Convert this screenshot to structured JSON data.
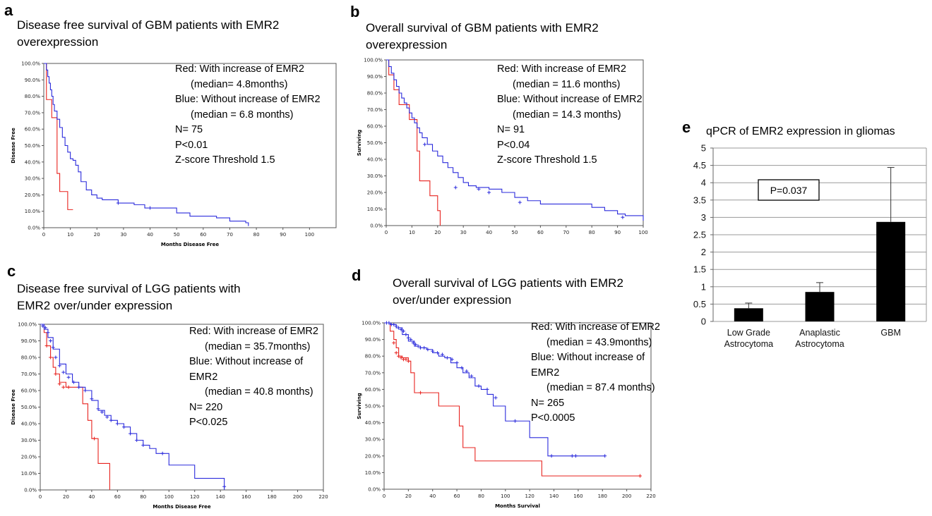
{
  "panels": {
    "a": {
      "letter": "a",
      "title": "Disease free survival of GBM patients with EMR2\noverexpression",
      "legend": {
        "red": "Red: With increase of EMR2",
        "red_median": "(median= 4.8months)",
        "blue": "Blue: Without increase of EMR2",
        "blue_median": "(median = 6.8 months)",
        "n": "N= 75",
        "p": "P<0.01",
        "z": "Z-score Threshold 1.5"
      }
    },
    "b": {
      "letter": "b",
      "title": "Overall survival of GBM patients with EMR2\noverexpression",
      "legend": {
        "red": "Red: With increase of EMR2",
        "red_median": "(median = 11.6 months)",
        "blue": "Blue: Without increase of EMR2",
        "blue_median": "(median = 14.3 months)",
        "n": "N= 91",
        "p": "P<0.04",
        "z": "Z-score Threshold 1.5"
      }
    },
    "c": {
      "letter": "c",
      "title": "Disease free survival of LGG patients with\nEMR2 over/under expression",
      "legend": {
        "red": "Red: With increase of EMR2",
        "red_median": "(median = 35.7months)",
        "blue": "Blue: Without increase of",
        "blue2": "EMR2",
        "blue_median": "(median = 40.8 months)",
        "n": "N= 220",
        "p": "P<0.025"
      }
    },
    "d": {
      "letter": "d",
      "title": "Overall survival of LGG patients with EMR2\nover/under expression",
      "legend": {
        "red": "Red: With increase of EMR2",
        "red_median": "(median = 43.9months)",
        "blue": "Blue: Without increase of",
        "blue2": "EMR2",
        "blue_median": "(median = 87.4 months)",
        "n": "N= 265",
        "p": "P<0.0005"
      }
    },
    "e": {
      "letter": "e",
      "title": "qPCR of EMR2 expression in gliomas",
      "annotation": "P=0.037"
    }
  },
  "colors": {
    "red": "#e8231f",
    "blue": "#2b2bdc",
    "axis": "#555555",
    "bar": "#000000"
  },
  "chart_data": [
    {
      "id": "a",
      "type": "line",
      "xlabel": "Months Disease Free",
      "ylabel": "Disease Free",
      "xlim": [
        0,
        110
      ],
      "ylim": [
        0,
        100
      ],
      "xticks": [
        "0",
        "10",
        "20",
        "30",
        "40",
        "50",
        "60",
        "70",
        "80",
        "90",
        "100"
      ],
      "yticks": [
        "0.0%",
        "10.0%",
        "20.0%",
        "30.0%",
        "40.0%",
        "50.0%",
        "60.0%",
        "70.0%",
        "80.0%",
        "90.0%",
        "100.0%"
      ],
      "series": [
        {
          "color": "red",
          "x": [
            0,
            1,
            1,
            3,
            3,
            5,
            5,
            6,
            6,
            9,
            9,
            11
          ],
          "y": [
            100,
            100,
            78,
            78,
            67,
            67,
            33,
            33,
            22,
            22,
            11,
            11
          ],
          "censor_x": [],
          "censor_y": []
        },
        {
          "color": "blue",
          "x": [
            0,
            1,
            1.5,
            2,
            2.5,
            3,
            3.5,
            4,
            5,
            6,
            7,
            8,
            9,
            10,
            11,
            12,
            13,
            14,
            16,
            18,
            20,
            22,
            25,
            28,
            30,
            34,
            38,
            42,
            46,
            50,
            55,
            60,
            65,
            70,
            74,
            76,
            77
          ],
          "y": [
            100,
            96,
            92,
            88,
            84,
            80,
            75,
            71,
            66,
            61,
            55,
            50,
            46,
            42,
            41,
            38,
            34,
            28,
            23,
            20,
            18,
            17,
            17,
            15,
            15,
            14,
            12,
            12,
            12,
            9,
            7,
            7,
            6,
            4,
            4,
            3,
            1
          ],
          "censor_x": [
            28,
            40
          ],
          "censor_y": [
            15,
            12
          ]
        }
      ]
    },
    {
      "id": "b",
      "type": "line",
      "xlabel": "",
      "ylabel": "Surviving",
      "xlim": [
        0,
        100
      ],
      "ylim": [
        0,
        100
      ],
      "xticks": [
        "0",
        "10",
        "20",
        "30",
        "40",
        "50",
        "60",
        "70",
        "80",
        "90",
        "100"
      ],
      "yticks": [
        "0.0%",
        "10.0%",
        "20.0%",
        "30.0%",
        "40.0%",
        "50.0%",
        "60.0%",
        "70.0%",
        "80.0%",
        "90.0%",
        "100.0%"
      ],
      "series": [
        {
          "color": "red",
          "x": [
            0,
            1,
            1,
            3,
            3,
            5,
            5,
            9,
            9,
            12,
            12,
            13,
            13,
            17,
            17,
            20,
            20,
            21
          ],
          "y": [
            100,
            100,
            91,
            91,
            82,
            82,
            73,
            73,
            64,
            64,
            45,
            45,
            27,
            27,
            18,
            18,
            9,
            0
          ],
          "censor_x": [],
          "censor_y": []
        },
        {
          "color": "blue",
          "x": [
            0,
            1,
            2,
            3,
            4,
            5,
            6,
            7,
            8,
            9,
            10,
            11,
            12,
            13,
            14,
            16,
            18,
            20,
            22,
            24,
            26,
            28,
            30,
            32,
            35,
            40,
            45,
            50,
            55,
            60,
            65,
            70,
            75,
            80,
            85,
            90,
            93,
            98,
            100
          ],
          "y": [
            100,
            96,
            92,
            88,
            84,
            80,
            77,
            74,
            71,
            68,
            65,
            62,
            59,
            56,
            53,
            49,
            45,
            42,
            38,
            35,
            32,
            29,
            26,
            24,
            23,
            22,
            20,
            17,
            15,
            13,
            13,
            13,
            13,
            11,
            9,
            7,
            6,
            6,
            3
          ],
          "censor_x": [
            15,
            27,
            36,
            40,
            52,
            92
          ],
          "censor_y": [
            49,
            23,
            22,
            20,
            14,
            5
          ]
        }
      ]
    },
    {
      "id": "c",
      "type": "line",
      "xlabel": "Months Disease Free",
      "ylabel": "Disease Free",
      "xlim": [
        0,
        220
      ],
      "ylim": [
        0,
        100
      ],
      "xticks": [
        "0",
        "20",
        "40",
        "60",
        "80",
        "100",
        "120",
        "140",
        "160",
        "180",
        "200",
        "220"
      ],
      "yticks": [
        "0.0%",
        "10.0%",
        "20.0%",
        "30.0%",
        "40.0%",
        "50.0%",
        "60.0%",
        "70.0%",
        "80.0%",
        "90.0%",
        "100.0%"
      ],
      "series": [
        {
          "color": "red",
          "x": [
            0,
            3,
            5,
            8,
            10,
            12,
            15,
            20,
            25,
            30,
            33,
            35,
            37,
            40,
            43,
            45,
            48,
            54
          ],
          "y": [
            100,
            95,
            87,
            80,
            74,
            70,
            65,
            62,
            62,
            62,
            52,
            52,
            42,
            31,
            31,
            16,
            16,
            0
          ],
          "censor_x": [
            5,
            8,
            12,
            15,
            18,
            22,
            42
          ],
          "censor_y": [
            87,
            80,
            70,
            64,
            62,
            62,
            31
          ]
        },
        {
          "color": "blue",
          "x": [
            0,
            3,
            6,
            10,
            15,
            20,
            25,
            30,
            35,
            40,
            45,
            50,
            55,
            60,
            65,
            70,
            75,
            80,
            85,
            90,
            95,
            100,
            110,
            120,
            130,
            143
          ],
          "y": [
            100,
            97,
            92,
            85,
            76,
            70,
            65,
            62,
            60,
            54,
            48,
            45,
            42,
            40,
            38,
            34,
            30,
            27,
            25,
            22,
            22,
            15,
            15,
            7,
            7,
            0
          ],
          "censor_x": [
            2,
            4,
            6,
            8,
            10,
            12,
            15,
            18,
            22,
            26,
            30,
            35,
            40,
            45,
            48,
            52,
            55,
            60,
            65,
            70,
            75,
            80,
            95,
            143
          ],
          "censor_y": [
            99,
            98,
            95,
            90,
            86,
            80,
            75,
            71,
            68,
            65,
            62,
            60,
            55,
            49,
            47,
            44,
            42,
            40,
            38,
            34,
            30,
            27,
            22,
            2
          ]
        }
      ]
    },
    {
      "id": "d",
      "type": "line",
      "xlabel": "Months Survival",
      "ylabel": "Surviving",
      "xlim": [
        0,
        220
      ],
      "ylim": [
        0,
        100
      ],
      "xticks": [
        "0",
        "20",
        "40",
        "60",
        "80",
        "100",
        "120",
        "140",
        "160",
        "180",
        "200",
        "220"
      ],
      "yticks": [
        "0.0%",
        "10.0%",
        "20.0%",
        "30.0%",
        "40.0%",
        "50.0%",
        "60.0%",
        "70.0%",
        "80.0%",
        "90.0%",
        "100.0%"
      ],
      "series": [
        {
          "color": "red",
          "x": [
            0,
            5,
            8,
            10,
            12,
            15,
            20,
            22,
            25,
            30,
            40,
            45,
            55,
            60,
            62,
            65,
            70,
            75,
            80,
            100,
            130,
            211
          ],
          "y": [
            100,
            95,
            90,
            85,
            80,
            79,
            77,
            70,
            58,
            58,
            58,
            50,
            50,
            50,
            38,
            25,
            25,
            17,
            17,
            17,
            8,
            8
          ],
          "censor_x": [
            8,
            10,
            12,
            14,
            16,
            18,
            20,
            30,
            211
          ],
          "censor_y": [
            88,
            82,
            80,
            79,
            78,
            78,
            77,
            58,
            8
          ]
        },
        {
          "color": "blue",
          "x": [
            0,
            5,
            10,
            15,
            20,
            25,
            30,
            35,
            40,
            45,
            50,
            55,
            60,
            65,
            70,
            75,
            80,
            85,
            90,
            95,
            100,
            110,
            120,
            130,
            135,
            140,
            182
          ],
          "y": [
            100,
            99,
            97,
            93,
            89,
            86,
            85,
            84,
            82,
            80,
            79,
            76,
            73,
            70,
            67,
            62,
            60,
            57,
            50,
            50,
            41,
            41,
            31,
            31,
            20,
            20,
            20
          ],
          "censor_x": [
            2,
            4,
            6,
            8,
            10,
            12,
            14,
            16,
            18,
            20,
            22,
            24,
            26,
            28,
            30,
            33,
            36,
            40,
            44,
            48,
            52,
            56,
            60,
            64,
            68,
            72,
            78,
            85,
            92,
            108,
            138,
            155,
            158,
            182
          ],
          "censor_y": [
            100,
            100,
            99,
            99,
            98,
            97,
            96,
            95,
            93,
            91,
            90,
            88,
            87,
            86,
            85,
            85,
            84,
            83,
            82,
            81,
            79,
            78,
            76,
            73,
            71,
            68,
            62,
            60,
            55,
            41,
            20,
            20,
            20,
            20
          ]
        }
      ]
    },
    {
      "id": "e",
      "type": "bar",
      "title": "qPCR of EMR2 expression in gliomas",
      "categories": [
        "Low Grade\nAstrocytoma",
        "Anaplastic\nAstrocytoma",
        "GBM"
      ],
      "values": [
        0.38,
        0.85,
        2.87
      ],
      "errors": [
        0.15,
        0.27,
        1.57
      ],
      "ylim": [
        0,
        5
      ],
      "yticks": [
        "0",
        "0.5",
        "1",
        "1.5",
        "2",
        "2.5",
        "3",
        "3.5",
        "4",
        "4.5",
        "5"
      ],
      "grid": true
    }
  ]
}
